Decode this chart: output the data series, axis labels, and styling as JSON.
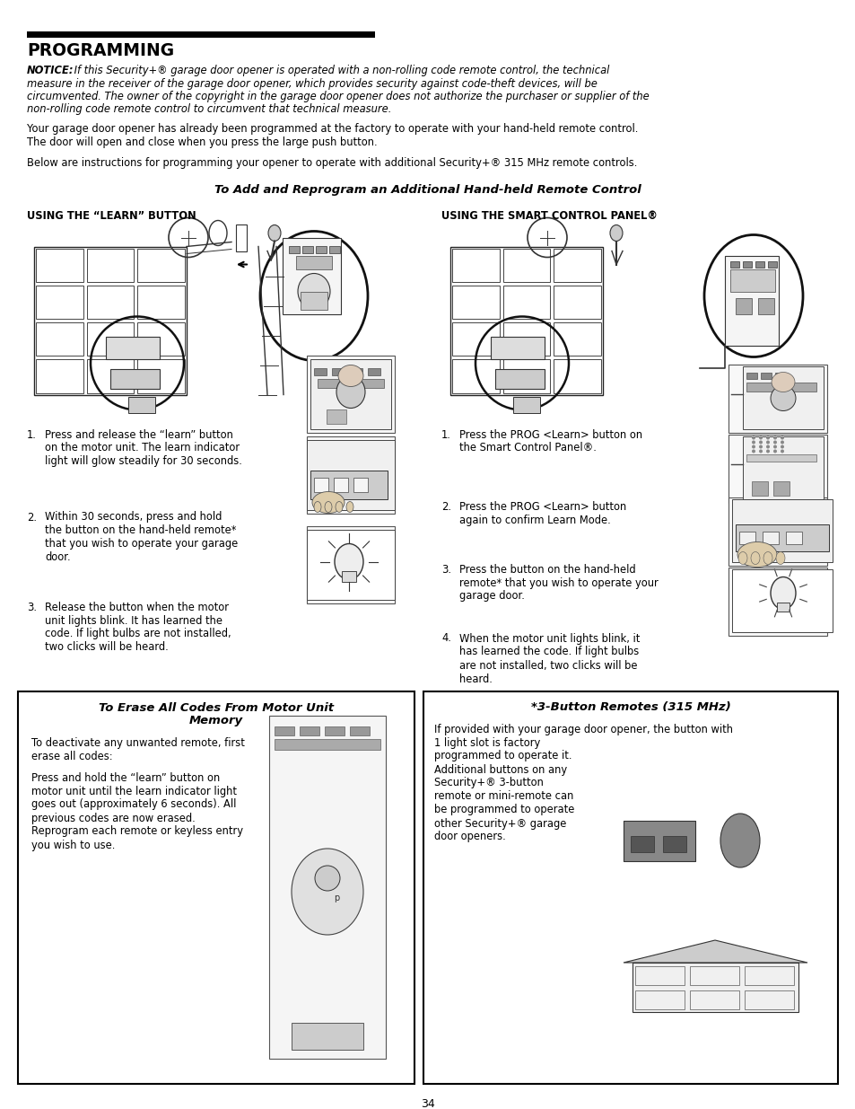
{
  "page_background": "#ffffff",
  "page_number": "34",
  "title_text": "PROGRAMMING",
  "notice_bold": "NOTICE:",
  "notice_rest": " If this Security+® garage door opener is operated with a non-rolling code remote control, the technical",
  "notice_line2": "measure in the receiver of the garage door opener, which provides security against code-theft devices, will be",
  "notice_line3": "circumvented. The owner of the copyright in the garage door opener does not authorize the purchaser or supplier of the",
  "notice_line4": "non-rolling code remote control to circumvent that technical measure.",
  "para1_line1": "Your garage door opener has already been programmed at the factory to operate with your hand-held remote control.",
  "para1_line2": "The door will open and close when you press the large push button.",
  "para2": "Below are instructions for programming your opener to operate with additional Security+® 315 MHz remote controls.",
  "section_title": "To Add and Reprogram an Additional Hand-held Remote Control",
  "left_col_header": "USING THE “LEARN” BUTTON",
  "right_col_header": "USING THE SMART CONTROL PANEL®",
  "left_steps": [
    "Press and release the “learn” button\non the motor unit. The learn indicator\nlight will glow steadily for 30 seconds.",
    "Within 30 seconds, press and hold\nthe button on the hand-held remote*\nthat you wish to operate your garage\ndoor.",
    "Release the button when the motor\nunit lights blink. It has learned the\ncode. If light bulbs are not installed,\ntwo clicks will be heard."
  ],
  "right_steps": [
    "Press the PROG <Learn> button on\nthe Smart Control Panel®.",
    "Press the PROG <Learn> button\nagain to confirm Learn Mode.",
    "Press the button on the hand-held\nremote* that you wish to operate your\ngarage door.",
    "When the motor unit lights blink, it\nhas learned the code. If light bulbs\nare not installed, two clicks will be\nheard."
  ],
  "erase_title_line1": "To Erase All Codes From Motor Unit",
  "erase_title_line2": "Memory",
  "erase_body1": "To deactivate any unwanted remote, first\nerase all codes:",
  "erase_body2": "Press and hold the “learn” button on\nmotor unit until the learn indicator light\ngoes out (approximately 6 seconds). All\nprevious codes are now erased.\nReprogram each remote or keyless entry\nyou wish to use.",
  "button_title": "*3-Button Remotes (315 MHz)",
  "button_body_line1": "If provided with your garage door opener, the button with",
  "button_body_rest": "1 light slot is factory\nprogrammed to operate it.\nAdditional buttons on any\nSecurity+® 3-button\nremote or mini-remote can\nbe programmed to operate\nother Security+® garage\ndoor openers."
}
